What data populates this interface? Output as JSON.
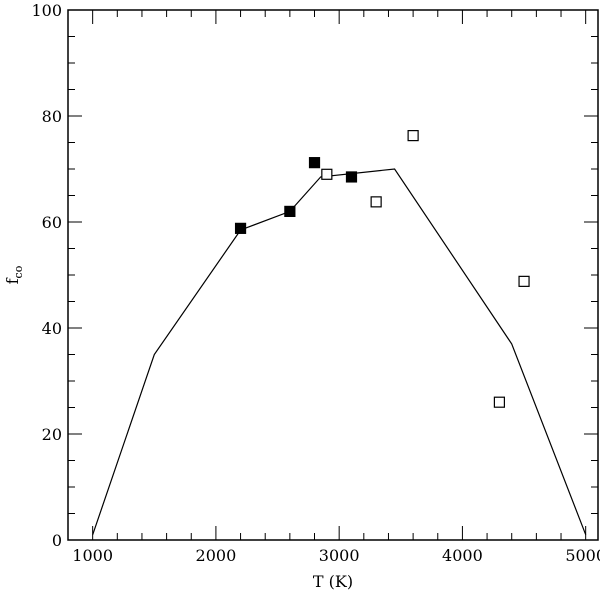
{
  "chart_data": {
    "type": "scatter",
    "xlabel": "T (K)",
    "ylabel": "f",
    "ylabel_sub": "co",
    "xlim": [
      800,
      5100
    ],
    "ylim": [
      0,
      100
    ],
    "x_ticks": [
      1000,
      2000,
      3000,
      4000,
      5000
    ],
    "y_ticks": [
      0,
      20,
      40,
      60,
      80,
      100
    ],
    "x_tick_labels": [
      "1000",
      "2000",
      "3000",
      "4000",
      "5000"
    ],
    "y_tick_labels": [
      "0",
      "20",
      "40",
      "60",
      "80",
      "100"
    ],
    "grid": false,
    "series": [
      {
        "marker": "line",
        "color": "#000000",
        "points": [
          {
            "x": 1000,
            "y": 1
          },
          {
            "x": 1500,
            "y": 35
          },
          {
            "x": 2200,
            "y": 58.5
          },
          {
            "x": 2600,
            "y": 62
          },
          {
            "x": 2850,
            "y": 68.5
          },
          {
            "x": 3450,
            "y": 70
          },
          {
            "x": 4400,
            "y": 37
          },
          {
            "x": 5000,
            "y": 1
          }
        ]
      },
      {
        "marker": "filled-square",
        "color": "#000000",
        "points": [
          {
            "x": 2200,
            "y": 58.8
          },
          {
            "x": 2600,
            "y": 62
          },
          {
            "x": 2800,
            "y": 71.2
          },
          {
            "x": 3100,
            "y": 68.5
          }
        ]
      },
      {
        "marker": "open-square",
        "color": "#000000",
        "points": [
          {
            "x": 2900,
            "y": 69
          },
          {
            "x": 3300,
            "y": 63.8
          },
          {
            "x": 3600,
            "y": 76.3
          },
          {
            "x": 4300,
            "y": 26
          },
          {
            "x": 4500,
            "y": 48.8
          }
        ]
      }
    ]
  }
}
